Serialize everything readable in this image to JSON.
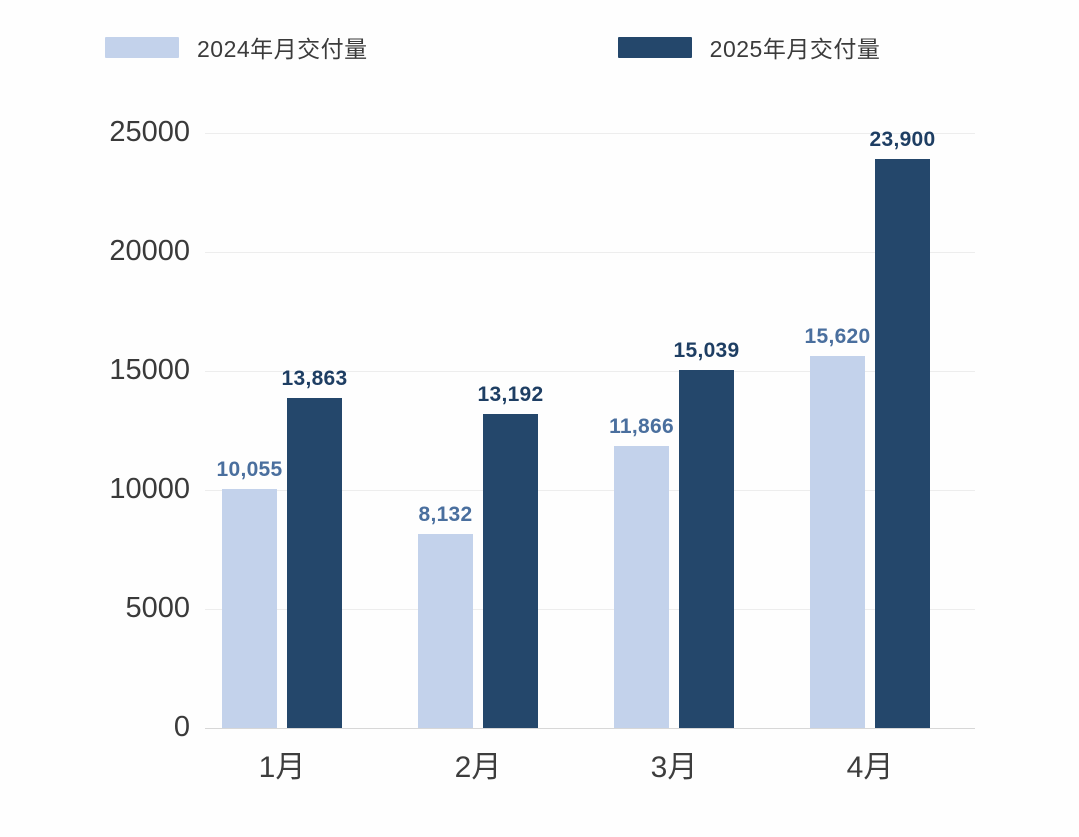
{
  "legend": {
    "items": [
      {
        "label": "2024年月交付量",
        "color": "#c3d2eb"
      },
      {
        "label": "2025年月交付量",
        "color": "#24476b"
      }
    ]
  },
  "chart_data": {
    "type": "bar",
    "title": "",
    "xlabel": "",
    "ylabel": "",
    "categories": [
      "1月",
      "2月",
      "3月",
      "4月"
    ],
    "series": [
      {
        "name": "2024年月交付量",
        "color": "#c3d2eb",
        "label_color": "#4a6f9e",
        "values": [
          10055,
          8132,
          11866,
          15620
        ],
        "labels": [
          "10,055",
          "8,132",
          "11,866",
          "15,620"
        ]
      },
      {
        "name": "2025年月交付量",
        "color": "#24476b",
        "label_color": "#1e3e63",
        "values": [
          13863,
          13192,
          15039,
          23900
        ],
        "labels": [
          "13,863",
          "13,192",
          "15,039",
          "23,900"
        ]
      }
    ],
    "ylim": [
      0,
      25000
    ],
    "yticks": [
      0,
      5000,
      10000,
      15000,
      20000,
      25000
    ],
    "grid": true,
    "legend_position": "top-left"
  }
}
